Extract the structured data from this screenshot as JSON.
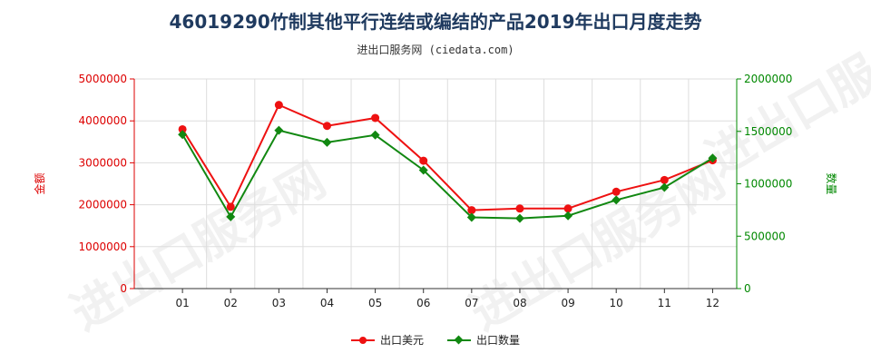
{
  "title": "46019290竹制其他平行连结或编结的产品2019年出口月度走势",
  "subtitle": "进出口服务网 (ciedata.com)",
  "watermark": "进出口服务网",
  "colors": {
    "export_usd": "#ee1111",
    "export_qty": "#118811",
    "left_axis": "#dd0000",
    "right_axis": "#008800"
  },
  "chart_data": {
    "type": "line",
    "categories": [
      "01",
      "02",
      "03",
      "04",
      "05",
      "06",
      "07",
      "08",
      "09",
      "10",
      "11",
      "12"
    ],
    "ylabel_left": "金额",
    "ylabel_right": "数量",
    "ylim_left": [
      0,
      5000000
    ],
    "ylim_right": [
      0,
      2000000
    ],
    "yticks_left": [
      "0",
      "1000000",
      "2000000",
      "3000000",
      "4000000",
      "5000000"
    ],
    "yticks_right": [
      "0",
      "500000",
      "1000000",
      "1500000",
      "2000000"
    ],
    "legend_position": "bottom",
    "series": [
      {
        "name": "出口美元",
        "axis": "left",
        "marker": "circle",
        "values": [
          3800000,
          1950000,
          4380000,
          3880000,
          4070000,
          3050000,
          1870000,
          1910000,
          1910000,
          2310000,
          2590000,
          3060000
        ]
      },
      {
        "name": "出口数量",
        "axis": "right",
        "marker": "diamond",
        "values": [
          1470000,
          685000,
          1510000,
          1395000,
          1465000,
          1130000,
          680000,
          670000,
          695000,
          845000,
          965000,
          1245000
        ]
      }
    ]
  }
}
